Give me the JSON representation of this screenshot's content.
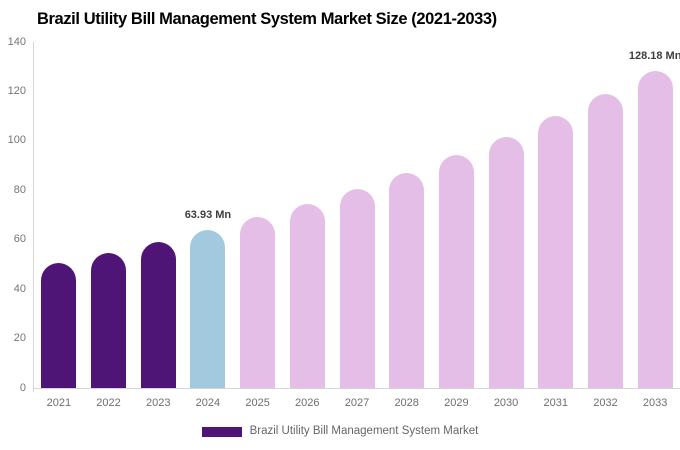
{
  "title": "Brazil Utility Bill Management System Market Size (2021-2033)",
  "legend": {
    "label": "Brazil Utility Bill Management System Market",
    "swatch_color": "#4E1577"
  },
  "chart_data": {
    "type": "bar",
    "title": "Brazil Utility Bill Management System Market Size (2021-2033)",
    "xlabel": "",
    "ylabel": "",
    "unit": "Mn",
    "categories": [
      "2021",
      "2022",
      "2023",
      "2024",
      "2025",
      "2026",
      "2027",
      "2028",
      "2029",
      "2030",
      "2031",
      "2032",
      "2033"
    ],
    "values": [
      50.7,
      54.8,
      59.2,
      63.93,
      69.1,
      74.6,
      80.6,
      87.1,
      94.2,
      101.7,
      109.9,
      118.8,
      128.18
    ],
    "ylim": [
      0,
      140
    ],
    "yticks": [
      0,
      20,
      40,
      60,
      80,
      100,
      120,
      140
    ],
    "grid": false,
    "legend_position": "bottom",
    "annotations": [
      {
        "index": 3,
        "category": "2024",
        "text": "63.93 Mn"
      },
      {
        "index": 12,
        "category": "2033",
        "text": "128.18 Mn"
      }
    ],
    "colors": {
      "historical": "#4E1577",
      "current_year": "#A2C9DE",
      "forecast": "#E4BEE6"
    },
    "bar_groups": [
      "historical",
      "historical",
      "historical",
      "current_year",
      "forecast",
      "forecast",
      "forecast",
      "forecast",
      "forecast",
      "forecast",
      "forecast",
      "forecast",
      "forecast"
    ]
  }
}
